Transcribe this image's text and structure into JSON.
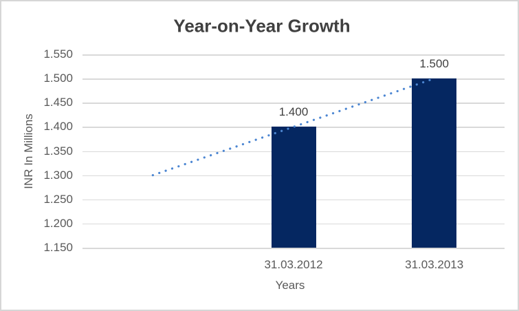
{
  "window": {
    "background": "#FFFFFF",
    "border_color": "#D6D6D6"
  },
  "chart_data": {
    "type": "bar",
    "title": "Year-on-Year Growth",
    "xlabel": "Years",
    "ylabel": "INR In Millions",
    "categories": [
      "31.03.2012",
      "31.03.2013"
    ],
    "values": [
      1.4,
      1.5
    ],
    "data_labels": [
      "1.400",
      "1.500"
    ],
    "ylim": [
      1.15,
      1.55
    ],
    "ytick_step": 0.05,
    "ytick_labels": [
      "1.150",
      "1.200",
      "1.250",
      "1.300",
      "1.350",
      "1.400",
      "1.450",
      "1.500",
      "1.550"
    ],
    "grid": true,
    "legend": false,
    "layout_hint": {
      "total_category_slots": 3,
      "leading_empty_category_slots": 1,
      "bars_in_slots": [
        1,
        2
      ]
    },
    "trendline": {
      "shape": "linear",
      "style": "dotted",
      "start": {
        "slot_index": 0,
        "value": 1.3
      },
      "end": {
        "slot_index": 2,
        "value": 1.5
      }
    },
    "colors": {
      "bar": "#052761",
      "trendline": "#4C86D2",
      "gridline": "#D9D9D9",
      "title_text": "#404040",
      "axis_text": "#595959",
      "data_label_text": "#404040"
    }
  }
}
